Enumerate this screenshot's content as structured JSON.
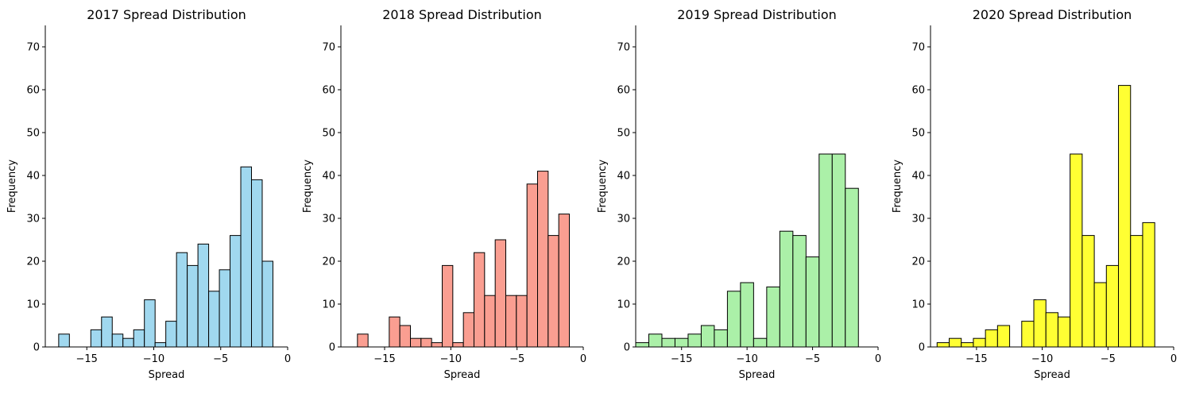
{
  "chart_data": [
    {
      "type": "bar",
      "title": "2017 Spread Distribution",
      "xlabel": "Spread",
      "ylabel": "Frequency",
      "xlim": [
        -18.1,
        0
      ],
      "ylim": [
        0,
        75
      ],
      "xticks": [
        -15,
        -10,
        -5,
        0
      ],
      "xtick_labels": [
        "−15",
        "−10",
        "−5",
        "0"
      ],
      "yticks": [
        0,
        10,
        20,
        30,
        40,
        50,
        60,
        70
      ],
      "bin_width": 0.8,
      "bin_start": -17.1,
      "values": [
        3,
        0,
        0,
        4,
        7,
        3,
        2,
        4,
        11,
        1,
        6,
        22,
        19,
        24,
        13,
        18,
        26,
        42,
        39,
        20
      ],
      "color": "#a0d8ef",
      "grid": false
    },
    {
      "type": "bar",
      "title": "2018 Spread Distribution",
      "xlabel": "Spread",
      "ylabel": "Frequency",
      "xlim": [
        -18.3,
        0
      ],
      "ylim": [
        0,
        75
      ],
      "xticks": [
        -15,
        -10,
        -5,
        0
      ],
      "xtick_labels": [
        "−15",
        "−10",
        "−5",
        "0"
      ],
      "yticks": [
        0,
        10,
        20,
        30,
        40,
        50,
        60,
        70
      ],
      "bin_width": 0.8,
      "bin_start": -17.05,
      "values": [
        3,
        0,
        0,
        7,
        5,
        2,
        2,
        1,
        19,
        1,
        8,
        22,
        12,
        25,
        12,
        12,
        38,
        41,
        26,
        31
      ],
      "color": "#fa9e91",
      "grid": false
    },
    {
      "type": "bar",
      "title": "2019 Spread Distribution",
      "xlabel": "Spread",
      "ylabel": "Frequency",
      "xlim": [
        -18.5,
        0
      ],
      "ylim": [
        0,
        75
      ],
      "xticks": [
        -15,
        -10,
        -5,
        0
      ],
      "xtick_labels": [
        "−15",
        "−10",
        "−5",
        "0"
      ],
      "yticks": [
        0,
        10,
        20,
        30,
        40,
        50,
        60,
        70
      ],
      "bin_width": 1.0,
      "bin_start": -18.5,
      "values": [
        1,
        3,
        2,
        2,
        3,
        5,
        4,
        13,
        15,
        2,
        14,
        27,
        26,
        21,
        45,
        45,
        37
      ],
      "color": "#abf0a8",
      "grid": false
    },
    {
      "type": "bar",
      "title": "2020 Spread Distribution",
      "xlabel": "Spread",
      "ylabel": "Frequency",
      "xlim": [
        -18.5,
        0
      ],
      "ylim": [
        0,
        75
      ],
      "xticks": [
        -15,
        -10,
        -5,
        0
      ],
      "xtick_labels": [
        "−15",
        "−10",
        "−5",
        "0"
      ],
      "yticks": [
        0,
        10,
        20,
        30,
        40,
        50,
        60,
        70
      ],
      "bin_width": 0.92,
      "bin_start": -18.0,
      "values": [
        1,
        2,
        1,
        2,
        4,
        5,
        0,
        6,
        11,
        8,
        7,
        45,
        26,
        15,
        19,
        61,
        26,
        29
      ],
      "color": "#ffff33",
      "grid": false
    }
  ]
}
